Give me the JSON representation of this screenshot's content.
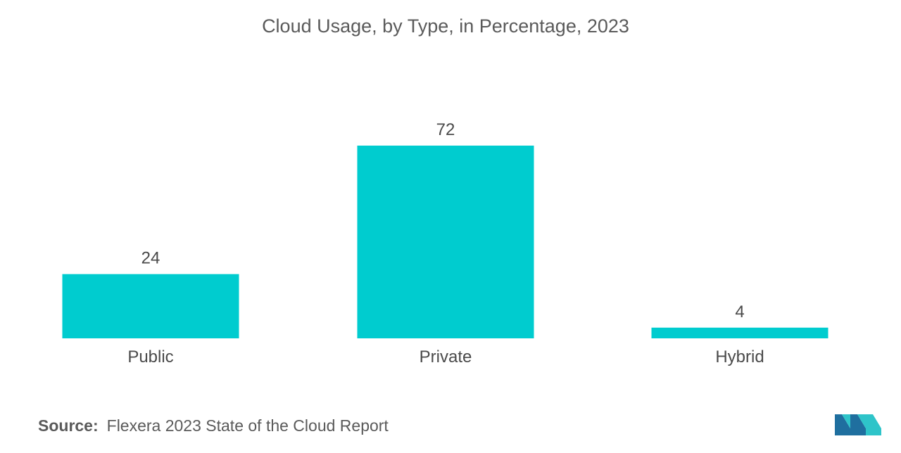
{
  "chart_data": {
    "type": "bar",
    "title": "Cloud Usage, by Type, in Percentage, 2023",
    "categories": [
      "Public",
      "Private",
      "Hybrid"
    ],
    "values": [
      24,
      72,
      4
    ],
    "xlabel": "",
    "ylabel": "",
    "ylim": [
      0,
      72
    ],
    "grid": false,
    "color": "#00cccf"
  },
  "source": {
    "label": "Source:",
    "text": "Flexera 2023 State of the Cloud Report"
  },
  "logo": {
    "icon": "mordor-intelligence-logo-icon",
    "colors": [
      "#1f6f9f",
      "#2ec4c9"
    ]
  }
}
